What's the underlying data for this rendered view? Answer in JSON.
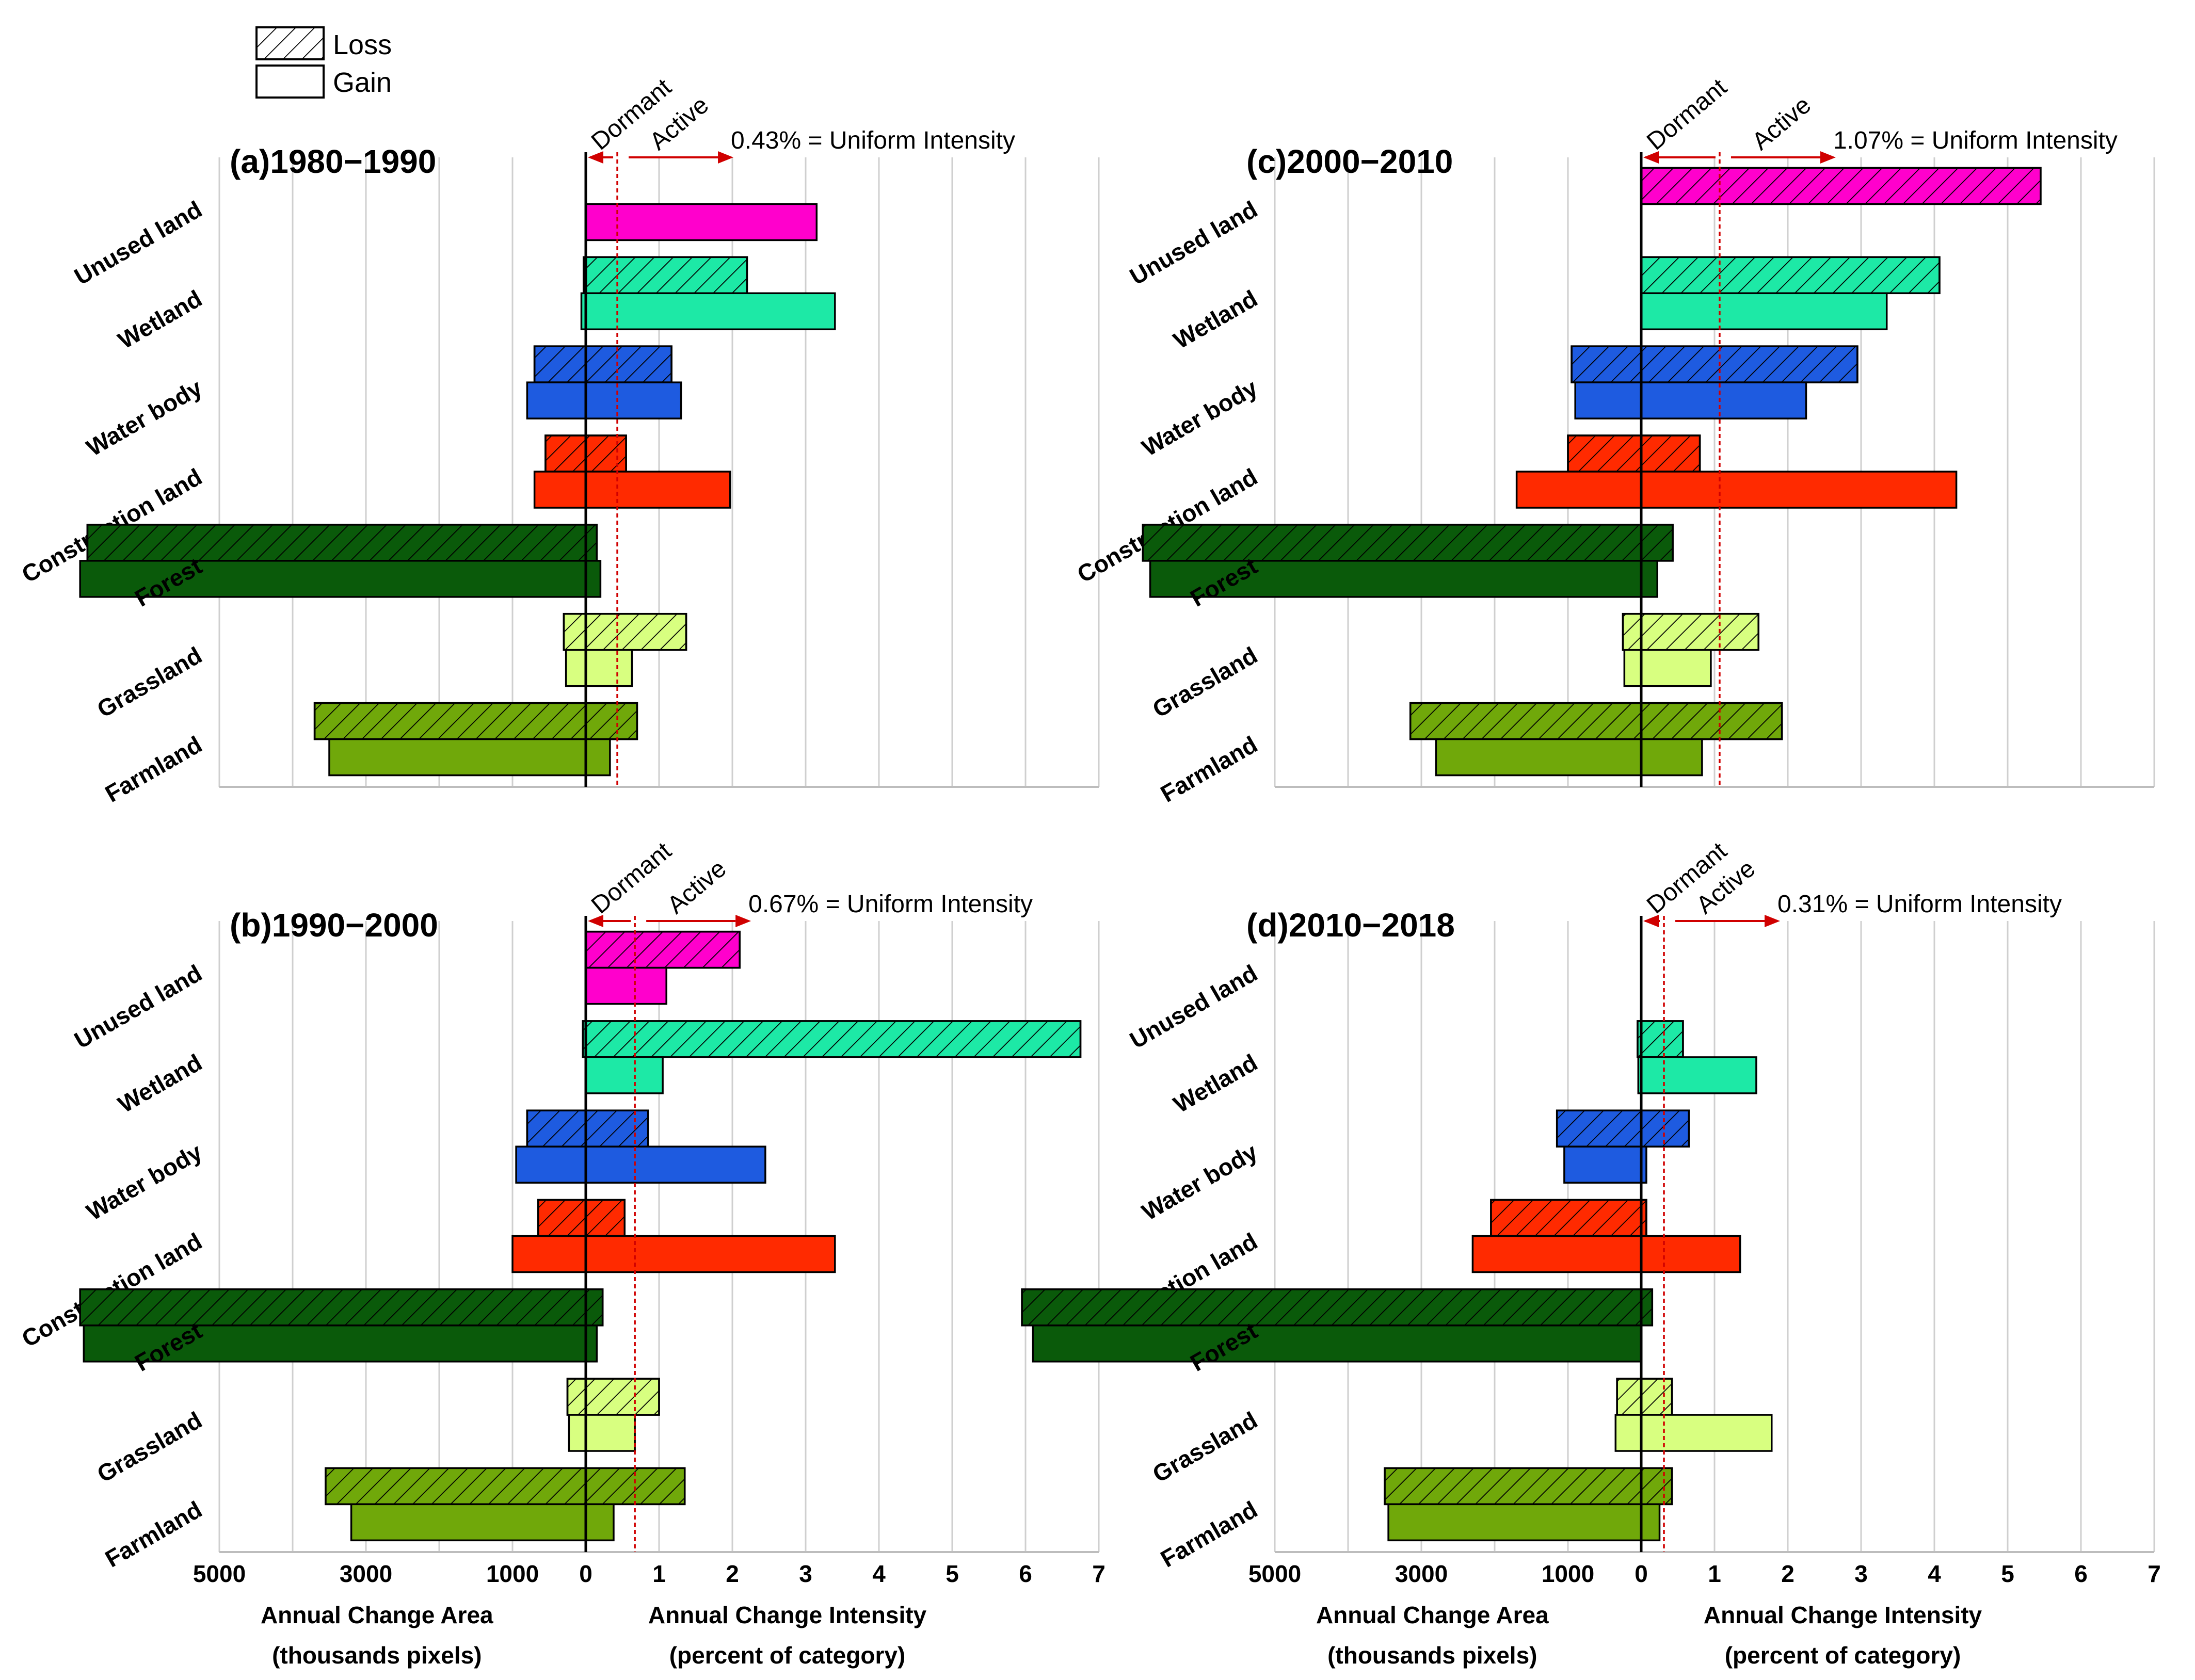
{
  "legend": {
    "loss": "Loss",
    "gain": "Gain"
  },
  "colors": {
    "unused_land": "#ff00cc",
    "wetland": "#1de9a6",
    "water_body": "#1e5be0",
    "construction_land": "#ff2a00",
    "forest": "#0a5a0a",
    "grassland": "#d8ff80",
    "farmland": "#70a80a",
    "uniform_line": "#d00000",
    "axis": "#000000",
    "grid": "#cfcfcf"
  },
  "labels": {
    "dormant": "Dormant",
    "active": "Active",
    "area_axis_title": "Annual Change Area",
    "area_axis_unit": "(thousands pixels)",
    "intensity_axis_title": "Annual Change Intensity",
    "intensity_axis_unit": "(percent of category)"
  },
  "chart_data": [
    {
      "type": "bar",
      "title": "(a)1980−1990",
      "uniform_intensity_label": "0.43% = Uniform Intensity",
      "uniform_intensity": 0.43,
      "categories": [
        "Unused land",
        "Wetland",
        "Water body",
        "Construction land",
        "Forest",
        "Grassland",
        "Farmland"
      ],
      "area_ticks": [
        "5000",
        "3000",
        "1000",
        "0"
      ],
      "intensity_ticks": [
        "1",
        "2",
        "3",
        "4",
        "5",
        "6",
        "7"
      ],
      "area_range": [
        5000,
        0
      ],
      "intensity_range": [
        0,
        7
      ],
      "series": [
        {
          "name": "Loss",
          "area": [
            0,
            30,
            700,
            550,
            6800,
            300,
            3700
          ],
          "intensity": [
            0,
            2.2,
            1.17,
            0.55,
            0.15,
            1.37,
            0.7
          ]
        },
        {
          "name": "Gain",
          "area": [
            0,
            60,
            800,
            700,
            6900,
            270,
            3500
          ],
          "intensity": [
            3.15,
            3.4,
            1.3,
            1.97,
            0.2,
            0.63,
            0.33
          ]
        }
      ]
    },
    {
      "type": "bar",
      "title": "(b)1990−2000",
      "uniform_intensity_label": "0.67% = Uniform Intensity",
      "uniform_intensity": 0.67,
      "categories": [
        "Unused land",
        "Wetland",
        "Water body",
        "Construction land",
        "Forest",
        "Grassland",
        "Farmland"
      ],
      "area_ticks": [
        "5000",
        "3000",
        "1000",
        "0"
      ],
      "intensity_ticks": [
        "1",
        "2",
        "3",
        "4",
        "5",
        "6",
        "7"
      ],
      "area_range": [
        5000,
        0
      ],
      "intensity_range": [
        0,
        7
      ],
      "series": [
        {
          "name": "Loss",
          "area": [
            0,
            40,
            800,
            650,
            6900,
            250,
            3550
          ],
          "intensity": [
            2.1,
            6.75,
            0.85,
            0.53,
            0.23,
            1.0,
            1.35
          ]
        },
        {
          "name": "Gain",
          "area": [
            0,
            0,
            950,
            1000,
            6850,
            230,
            3200
          ],
          "intensity": [
            1.1,
            1.05,
            2.45,
            3.4,
            0.15,
            0.67,
            0.38
          ]
        }
      ]
    },
    {
      "type": "bar",
      "title": "(c)2000−2010",
      "uniform_intensity_label": "1.07% = Uniform Intensity",
      "uniform_intensity": 1.07,
      "categories": [
        "Unused land",
        "Wetland",
        "Water body",
        "Construction land",
        "Forest",
        "Grassland",
        "Farmland"
      ],
      "area_ticks": [
        "5000",
        "3000",
        "1000",
        "0"
      ],
      "intensity_ticks": [
        "1",
        "2",
        "3",
        "4",
        "5",
        "6",
        "7"
      ],
      "area_range": [
        5000,
        0
      ],
      "intensity_range": [
        0,
        7
      ],
      "series": [
        {
          "name": "Loss",
          "area": [
            0,
            0,
            950,
            1000,
            6800,
            250,
            3150
          ],
          "intensity": [
            5.45,
            4.07,
            2.95,
            0.8,
            0.43,
            1.6,
            1.92
          ]
        },
        {
          "name": "Gain",
          "area": [
            0,
            0,
            900,
            1700,
            6700,
            230,
            2800
          ],
          "intensity": [
            0,
            3.35,
            2.25,
            4.3,
            0.22,
            0.95,
            0.83
          ]
        }
      ]
    },
    {
      "type": "bar",
      "title": "(d)2010−2018",
      "uniform_intensity_label": "0.31% = Uniform Intensity",
      "uniform_intensity": 0.31,
      "categories": [
        "Unused land",
        "Wetland",
        "Water body",
        "Construction land",
        "Forest",
        "Grassland",
        "Farmland"
      ],
      "area_ticks": [
        "5000",
        "3000",
        "1000",
        "0"
      ],
      "intensity_ticks": [
        "1",
        "2",
        "3",
        "4",
        "5",
        "6",
        "7"
      ],
      "area_range": [
        5000,
        0
      ],
      "intensity_range": [
        0,
        7
      ],
      "series": [
        {
          "name": "Loss",
          "area": [
            0,
            50,
            1150,
            2050,
            8450,
            330,
            3500
          ],
          "intensity": [
            0,
            0.57,
            0.65,
            0.07,
            0.15,
            0.42,
            0.42
          ]
        },
        {
          "name": "Gain",
          "area": [
            0,
            40,
            1050,
            2300,
            8300,
            350,
            3450
          ],
          "intensity": [
            0,
            1.57,
            0.07,
            1.35,
            0,
            1.78,
            0.25
          ]
        }
      ]
    }
  ]
}
